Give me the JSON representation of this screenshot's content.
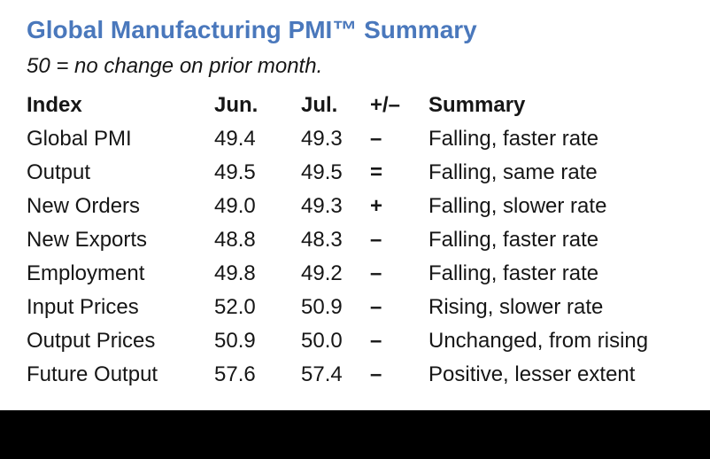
{
  "header": {
    "title": "Global Manufacturing PMI™ Summary",
    "subtitle": "50 = no change on prior month."
  },
  "table": {
    "columns": [
      "Index",
      "Jun.",
      "Jul.",
      "+/–",
      "Summary"
    ],
    "rows": [
      {
        "index": "Global PMI",
        "jun": "49.4",
        "jul": "49.3",
        "change": "–",
        "summary": "Falling, faster rate"
      },
      {
        "index": "Output",
        "jun": "49.5",
        "jul": "49.5",
        "change": "=",
        "summary": "Falling, same rate"
      },
      {
        "index": "New Orders",
        "jun": "49.0",
        "jul": "49.3",
        "change": "+",
        "summary": "Falling, slower rate"
      },
      {
        "index": "New Exports",
        "jun": "48.8",
        "jul": "48.3",
        "change": "–",
        "summary": "Falling, faster rate"
      },
      {
        "index": "Employment",
        "jun": "49.8",
        "jul": "49.2",
        "change": "–",
        "summary": "Falling, faster rate"
      },
      {
        "index": "Input Prices",
        "jun": "52.0",
        "jul": "50.9",
        "change": "–",
        "summary": "Rising, slower rate"
      },
      {
        "index": "Output Prices",
        "jun": "50.9",
        "jul": "50.0",
        "change": "–",
        "summary": "Unchanged, from rising"
      },
      {
        "index": "Future Output",
        "jun": "57.6",
        "jul": "57.4",
        "change": "–",
        "summary": "Positive, lesser extent"
      }
    ]
  },
  "colors": {
    "title_blue": "#4a78bc",
    "body_text": "#161616",
    "bottom_bar": "#000000",
    "background": "#ffffff"
  }
}
